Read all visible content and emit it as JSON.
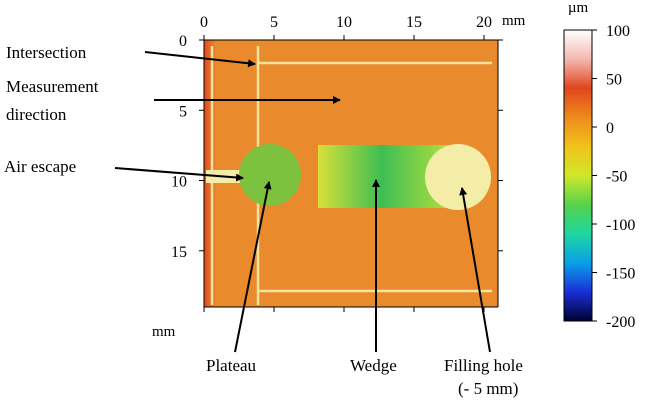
{
  "figure": {
    "x_axis": {
      "ticks": [
        "0",
        "5",
        "10",
        "15",
        "20"
      ],
      "tick_values": [
        0,
        5,
        10,
        15,
        20
      ],
      "unit": "mm",
      "range": [
        0,
        21
      ]
    },
    "y_axis": {
      "ticks": [
        "0",
        "5",
        "10",
        "15"
      ],
      "tick_values": [
        0,
        5,
        10,
        15
      ],
      "unit": "mm",
      "range": [
        0,
        19
      ]
    },
    "colorbar": {
      "unit": "µm",
      "ticks": [
        "100",
        "50",
        "0",
        "-50",
        "-100",
        "-150",
        "-200"
      ],
      "tick_values": [
        100,
        50,
        0,
        -50,
        -100,
        -150,
        -200
      ],
      "range": [
        -200,
        100
      ],
      "colors": [
        "#000033",
        "#1a2fd6",
        "#0aa0e8",
        "#1ed6a0",
        "#57d24a",
        "#cfe82a",
        "#f2c21a",
        "#ee8a1c",
        "#e0461e",
        "#f4b8b0",
        "#ffffff"
      ]
    },
    "map_colors": {
      "background": "#e98a2c",
      "line": "#f3e3a0",
      "plateau": "#7cc23e",
      "filling_hole": "#f3eda8",
      "wedge_start": "#d7e03a",
      "wedge_mid": "#3dbe52",
      "wedge_end": "#c6e33a"
    },
    "annotations": [
      {
        "id": "intersection",
        "lines": [
          "Intersection"
        ]
      },
      {
        "id": "measurement-direction",
        "lines": [
          "Measurement",
          "direction"
        ]
      },
      {
        "id": "air-escape",
        "lines": [
          "Air escape"
        ]
      },
      {
        "id": "plateau",
        "lines": [
          "Plateau"
        ]
      },
      {
        "id": "wedge",
        "lines": [
          "Wedge"
        ]
      },
      {
        "id": "filling-hole",
        "lines": [
          "Filling hole",
          "(- 5 mm)"
        ]
      }
    ]
  }
}
